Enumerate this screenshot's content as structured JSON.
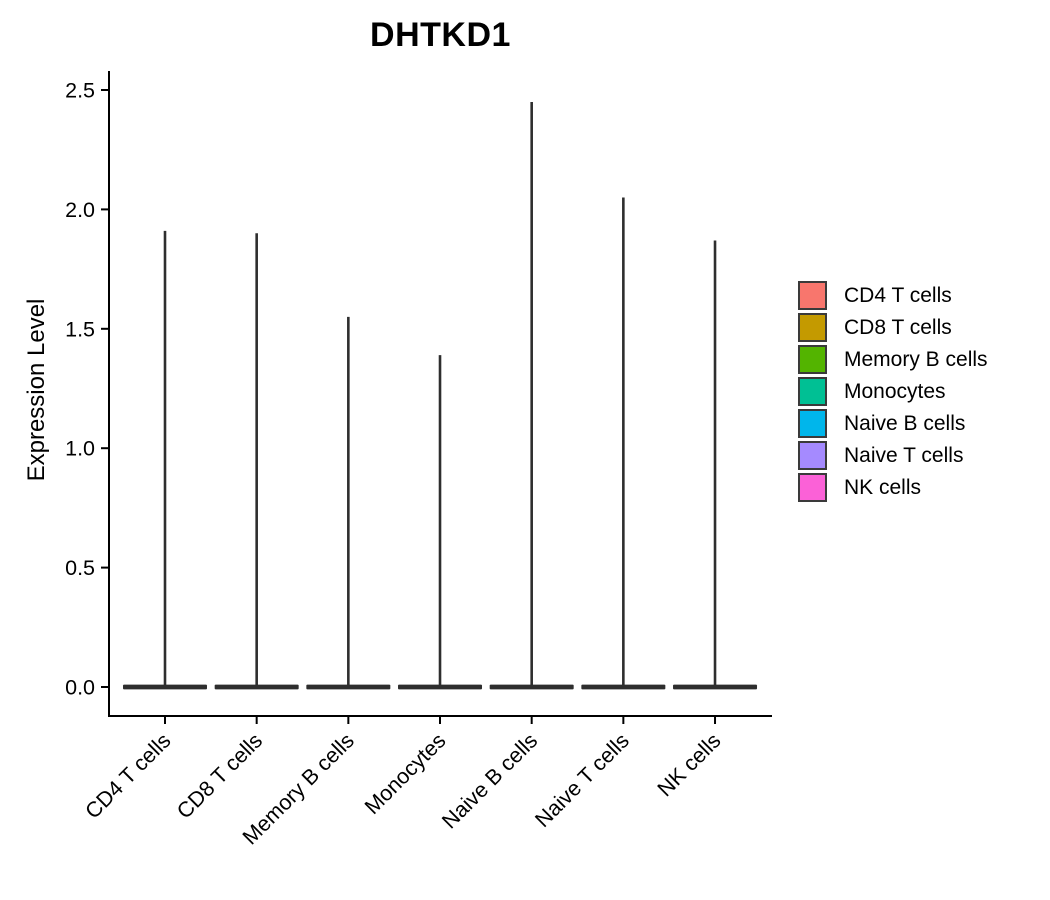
{
  "chart_data": {
    "type": "violin",
    "title": "DHTKD1",
    "ylabel": "Expression Level",
    "xlabel": "",
    "ylim": [
      0.0,
      2.5
    ],
    "yticks": [
      0.0,
      0.5,
      1.0,
      1.5,
      2.0,
      2.5
    ],
    "ytick_labels": [
      "0.0",
      "0.5",
      "1.0",
      "1.5",
      "2.0",
      "2.5"
    ],
    "grid": false,
    "legend_position": "right",
    "categories": [
      "CD4 T cells",
      "CD8 T cells",
      "Memory B cells",
      "Monocytes",
      "Naive B cells",
      "Naive T cells",
      "NK cells"
    ],
    "series": [
      {
        "name": "CD4 T cells",
        "baseline": 0.0,
        "max": 1.91,
        "color": "#F8766D"
      },
      {
        "name": "CD8 T cells",
        "baseline": 0.0,
        "max": 1.9,
        "color": "#C49A00"
      },
      {
        "name": "Memory B cells",
        "baseline": 0.0,
        "max": 1.55,
        "color": "#53B400"
      },
      {
        "name": "Monocytes",
        "baseline": 0.0,
        "max": 1.39,
        "color": "#00C094"
      },
      {
        "name": "Naive B cells",
        "baseline": 0.0,
        "max": 2.45,
        "color": "#00B6EB"
      },
      {
        "name": "Naive T cells",
        "baseline": 0.0,
        "max": 2.05,
        "color": "#A58AFF"
      },
      {
        "name": "NK cells",
        "baseline": 0.0,
        "max": 1.87,
        "color": "#FB61D7"
      }
    ],
    "legend": [
      {
        "label": "CD4 T cells",
        "color": "#F8766D"
      },
      {
        "label": "CD8 T cells",
        "color": "#C49A00"
      },
      {
        "label": "Memory B cells",
        "color": "#53B400"
      },
      {
        "label": "Monocytes",
        "color": "#00C094"
      },
      {
        "label": "Naive B cells",
        "color": "#00B6EB"
      },
      {
        "label": "Naive T cells",
        "color": "#A58AFF"
      },
      {
        "label": "NK cells",
        "color": "#FB61D7"
      }
    ],
    "violin_outline_color": "#2e2e2e",
    "axis_color": "#000000"
  }
}
